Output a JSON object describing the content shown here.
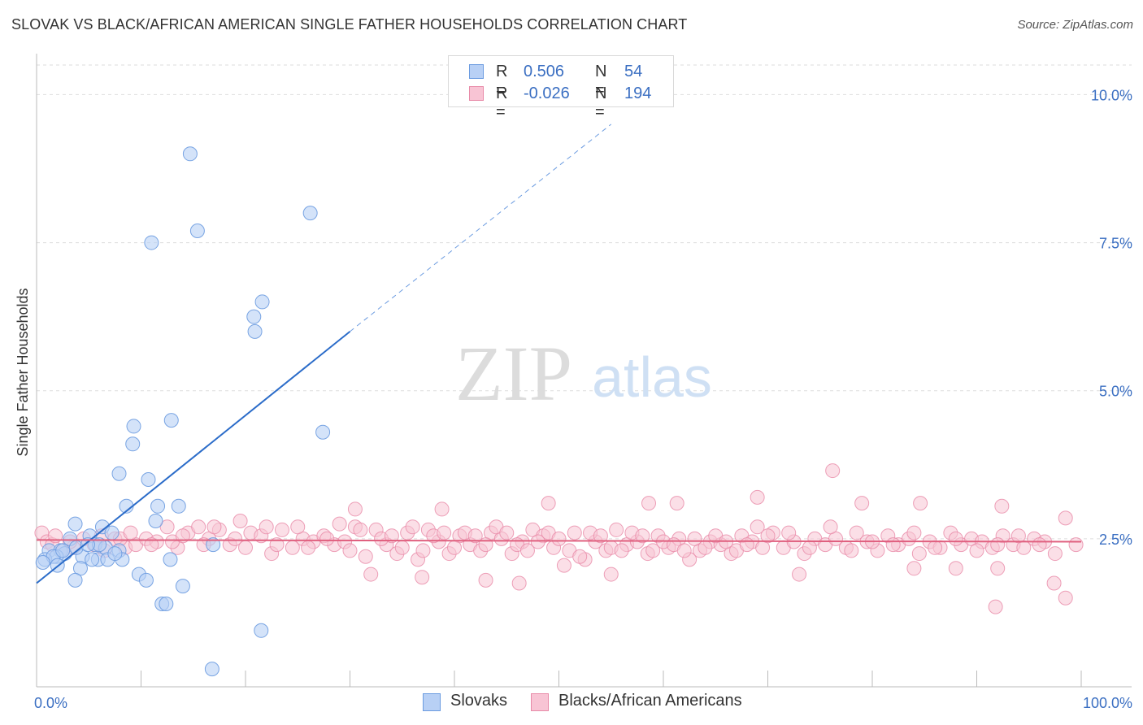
{
  "title": "SLOVAK VS BLACK/AFRICAN AMERICAN SINGLE FATHER HOUSEHOLDS CORRELATION CHART",
  "source": "Source: ZipAtlas.com",
  "watermark": {
    "zip": "ZIP",
    "atlas": "atlas"
  },
  "colors": {
    "blue_fill": "#b8d0f5",
    "blue_stroke": "#6b9be0",
    "blue_line": "#2b6cc9",
    "pink_fill": "#f8c4d4",
    "pink_stroke": "#e88aa8",
    "pink_line": "#e0607f",
    "axis_label": "#3b6fc2",
    "grid": "#dddddd"
  },
  "legend": {
    "rows": [
      {
        "r_label": "R =",
        "r_value": "0.506",
        "n_label": "N =",
        "n_value": "54",
        "series": "blue"
      },
      {
        "r_label": "R =",
        "r_value": "-0.026",
        "n_label": "N =",
        "n_value": "194",
        "series": "pink"
      }
    ]
  },
  "bottom_legend": [
    {
      "label": "Slovaks",
      "series": "blue"
    },
    {
      "label": "Blacks/African Americans",
      "series": "pink"
    }
  ],
  "chart_data": {
    "type": "scatter",
    "title": "SLOVAK VS BLACK/AFRICAN AMERICAN SINGLE FATHER HOUSEHOLDS CORRELATION CHART",
    "xlabel": "",
    "ylabel": "Single Father Households",
    "xlim": [
      0,
      100
    ],
    "ylim": [
      0,
      10.5
    ],
    "x_tick_labels": [
      {
        "value": 0,
        "label": "0.0%"
      },
      {
        "value": 100,
        "label": "100.0%"
      }
    ],
    "y_tick_labels": [
      {
        "value": 2.5,
        "label": "2.5%"
      },
      {
        "value": 5.0,
        "label": "5.0%"
      },
      {
        "value": 7.5,
        "label": "7.5%"
      },
      {
        "value": 10.0,
        "label": "10.0%"
      }
    ],
    "x_minor_ticks": [
      0,
      10,
      20,
      30,
      40,
      50,
      60,
      70,
      80,
      90,
      100
    ],
    "legend_position": "top-center",
    "series": [
      {
        "name": "Slovaks",
        "color": "blue",
        "R": 0.506,
        "N": 54,
        "trend": {
          "x0": 0,
          "y0": 1.75,
          "x1": 30,
          "y1": 6.0,
          "dashed_to_x": 55,
          "dashed_to_y": 9.5
        },
        "points": [
          [
            14.7,
            9.0
          ],
          [
            15.4,
            7.7
          ],
          [
            11,
            7.5
          ],
          [
            26.2,
            8.0
          ],
          [
            21.6,
            6.5
          ],
          [
            20.8,
            6.25
          ],
          [
            20.9,
            6.0
          ],
          [
            27.4,
            4.3
          ],
          [
            12.9,
            4.5
          ],
          [
            9.3,
            4.4
          ],
          [
            9.2,
            4.1
          ],
          [
            7.9,
            3.6
          ],
          [
            10.7,
            3.5
          ],
          [
            8.6,
            3.05
          ],
          [
            11.6,
            3.05
          ],
          [
            13.6,
            3.05
          ],
          [
            11.4,
            2.8
          ],
          [
            3.7,
            2.75
          ],
          [
            6.3,
            2.7
          ],
          [
            7.2,
            2.6
          ],
          [
            5.1,
            2.55
          ],
          [
            3.2,
            2.5
          ],
          [
            16.9,
            2.4
          ],
          [
            1.2,
            2.3
          ],
          [
            2.3,
            2.3
          ],
          [
            2.7,
            2.25
          ],
          [
            1.9,
            2.2
          ],
          [
            4.4,
            2.2
          ],
          [
            3.8,
            2.35
          ],
          [
            5.6,
            2.4
          ],
          [
            6.6,
            2.35
          ],
          [
            7.9,
            2.3
          ],
          [
            0.8,
            2.15
          ],
          [
            1.6,
            2.2
          ],
          [
            5.9,
            2.15
          ],
          [
            6.8,
            2.15
          ],
          [
            8.2,
            2.15
          ],
          [
            12.8,
            2.15
          ],
          [
            0.6,
            2.1
          ],
          [
            2.0,
            2.05
          ],
          [
            4.2,
            2.0
          ],
          [
            5.3,
            2.15
          ],
          [
            3.7,
            1.8
          ],
          [
            9.8,
            1.9
          ],
          [
            10.5,
            1.8
          ],
          [
            14.0,
            1.7
          ],
          [
            12.0,
            1.4
          ],
          [
            12.4,
            1.4
          ],
          [
            21.5,
            0.95
          ],
          [
            16.8,
            0.3
          ],
          [
            2.5,
            2.3
          ],
          [
            6.0,
            2.4
          ],
          [
            7.5,
            2.25
          ],
          [
            4.9,
            2.4
          ]
        ]
      },
      {
        "name": "Blacks/African Americans",
        "color": "pink",
        "R": -0.026,
        "N": 194,
        "trend": {
          "x0": 0,
          "y0": 2.48,
          "x1": 100,
          "y1": 2.45
        },
        "points": [
          [
            0.5,
            2.6
          ],
          [
            1.0,
            2.45
          ],
          [
            1.5,
            2.4
          ],
          [
            2.5,
            2.3
          ],
          [
            3.5,
            2.35
          ],
          [
            4.5,
            2.5
          ],
          [
            5.5,
            2.4
          ],
          [
            6.5,
            2.3
          ],
          [
            7.5,
            2.5
          ],
          [
            8.5,
            2.35
          ],
          [
            9.5,
            2.4
          ],
          [
            10.5,
            2.5
          ],
          [
            11.5,
            2.45
          ],
          [
            12.5,
            2.7
          ],
          [
            13.5,
            2.35
          ],
          [
            14.5,
            2.6
          ],
          [
            15.5,
            2.7
          ],
          [
            16.5,
            2.5
          ],
          [
            17.5,
            2.65
          ],
          [
            18.5,
            2.4
          ],
          [
            19.5,
            2.8
          ],
          [
            20.5,
            2.6
          ],
          [
            21.5,
            2.55
          ],
          [
            22.5,
            2.25
          ],
          [
            23.5,
            2.65
          ],
          [
            24.5,
            2.35
          ],
          [
            25.5,
            2.5
          ],
          [
            26.5,
            2.45
          ],
          [
            27.5,
            2.55
          ],
          [
            28.5,
            2.4
          ],
          [
            29.5,
            2.45
          ],
          [
            30.5,
            2.7
          ],
          [
            31.5,
            2.2
          ],
          [
            32.5,
            2.65
          ],
          [
            33.5,
            2.4
          ],
          [
            34.5,
            2.25
          ],
          [
            35.5,
            2.6
          ],
          [
            36.5,
            2.15
          ],
          [
            37.5,
            2.65
          ],
          [
            38.5,
            2.45
          ],
          [
            39.5,
            2.25
          ],
          [
            40.5,
            2.55
          ],
          [
            41.5,
            2.4
          ],
          [
            42.5,
            2.3
          ],
          [
            43.5,
            2.6
          ],
          [
            44.5,
            2.5
          ],
          [
            45.5,
            2.25
          ],
          [
            46.5,
            2.45
          ],
          [
            47.5,
            2.65
          ],
          [
            48.5,
            2.55
          ],
          [
            49.5,
            2.35
          ],
          [
            50.5,
            2.05
          ],
          [
            51.5,
            2.6
          ],
          [
            52.5,
            2.15
          ],
          [
            53.5,
            2.45
          ],
          [
            54.5,
            2.3
          ],
          [
            55.5,
            2.65
          ],
          [
            56.5,
            2.4
          ],
          [
            57.5,
            2.45
          ],
          [
            58.5,
            2.25
          ],
          [
            59.5,
            2.55
          ],
          [
            60.5,
            2.35
          ],
          [
            61.5,
            2.5
          ],
          [
            62.5,
            2.15
          ],
          [
            63.5,
            2.3
          ],
          [
            64.5,
            2.45
          ],
          [
            65.5,
            2.4
          ],
          [
            66.5,
            2.25
          ],
          [
            67.5,
            2.55
          ],
          [
            68.5,
            2.45
          ],
          [
            69.5,
            2.35
          ],
          [
            70.5,
            2.6
          ],
          [
            71.5,
            2.35
          ],
          [
            72.5,
            2.45
          ],
          [
            73.5,
            2.25
          ],
          [
            74.5,
            2.5
          ],
          [
            75.5,
            2.4
          ],
          [
            76.5,
            2.5
          ],
          [
            77.5,
            2.35
          ],
          [
            78.5,
            2.6
          ],
          [
            79.5,
            2.45
          ],
          [
            80.5,
            2.3
          ],
          [
            81.5,
            2.55
          ],
          [
            82.5,
            2.4
          ],
          [
            83.5,
            2.5
          ],
          [
            84.5,
            2.25
          ],
          [
            85.5,
            2.45
          ],
          [
            86.5,
            2.35
          ],
          [
            87.5,
            2.6
          ],
          [
            88.5,
            2.4
          ],
          [
            89.5,
            2.5
          ],
          [
            90.5,
            2.45
          ],
          [
            91.5,
            2.35
          ],
          [
            92.5,
            2.55
          ],
          [
            93.5,
            2.4
          ],
          [
            94.5,
            2.35
          ],
          [
            95.5,
            2.5
          ],
          [
            96.5,
            2.45
          ],
          [
            97.5,
            2.25
          ],
          [
            98.5,
            2.85
          ],
          [
            99.5,
            2.4
          ],
          [
            1.8,
            2.55
          ],
          [
            3.2,
            2.45
          ],
          [
            6.2,
            2.55
          ],
          [
            8.0,
            2.5
          ],
          [
            9.0,
            2.6
          ],
          [
            11.0,
            2.4
          ],
          [
            13.0,
            2.45
          ],
          [
            14.0,
            2.55
          ],
          [
            16.0,
            2.4
          ],
          [
            17.0,
            2.7
          ],
          [
            19.0,
            2.5
          ],
          [
            20.0,
            2.35
          ],
          [
            22.0,
            2.7
          ],
          [
            23.0,
            2.4
          ],
          [
            25.0,
            2.7
          ],
          [
            26.0,
            2.35
          ],
          [
            27.8,
            2.5
          ],
          [
            29.0,
            2.75
          ],
          [
            30.0,
            2.3
          ],
          [
            31.0,
            2.65
          ],
          [
            33.0,
            2.5
          ],
          [
            34.0,
            2.55
          ],
          [
            35.0,
            2.35
          ],
          [
            36.0,
            2.7
          ],
          [
            37.0,
            2.3
          ],
          [
            38.0,
            2.55
          ],
          [
            39.0,
            2.6
          ],
          [
            40.0,
            2.35
          ],
          [
            41.0,
            2.6
          ],
          [
            42.0,
            2.55
          ],
          [
            43.0,
            2.4
          ],
          [
            44.0,
            2.7
          ],
          [
            45.0,
            2.6
          ],
          [
            46.0,
            2.4
          ],
          [
            47.0,
            2.3
          ],
          [
            48.0,
            2.45
          ],
          [
            49.0,
            2.6
          ],
          [
            50.0,
            2.5
          ],
          [
            51.0,
            2.3
          ],
          [
            52.0,
            2.2
          ],
          [
            53.0,
            2.6
          ],
          [
            54.0,
            2.55
          ],
          [
            55.0,
            2.35
          ],
          [
            56.0,
            2.3
          ],
          [
            57.0,
            2.6
          ],
          [
            58.0,
            2.55
          ],
          [
            59.0,
            2.3
          ],
          [
            60.0,
            2.45
          ],
          [
            61.0,
            2.4
          ],
          [
            62.0,
            2.3
          ],
          [
            63.0,
            2.5
          ],
          [
            64.0,
            2.35
          ],
          [
            65.0,
            2.55
          ],
          [
            66.0,
            2.45
          ],
          [
            67.0,
            2.3
          ],
          [
            68.0,
            2.4
          ],
          [
            69.0,
            2.7
          ],
          [
            70.0,
            2.55
          ],
          [
            72.0,
            2.6
          ],
          [
            74.0,
            2.35
          ],
          [
            76.0,
            2.7
          ],
          [
            78.0,
            2.3
          ],
          [
            80.0,
            2.45
          ],
          [
            82.0,
            2.4
          ],
          [
            84.0,
            2.6
          ],
          [
            86.0,
            2.35
          ],
          [
            88.0,
            2.5
          ],
          [
            90.0,
            2.3
          ],
          [
            92.0,
            2.4
          ],
          [
            94.0,
            2.55
          ],
          [
            96.0,
            2.4
          ],
          [
            30.5,
            3.0
          ],
          [
            38.8,
            3.0
          ],
          [
            49.0,
            3.1
          ],
          [
            58.6,
            3.1
          ],
          [
            61.3,
            3.1
          ],
          [
            69.0,
            3.2
          ],
          [
            76.2,
            3.65
          ],
          [
            79.0,
            3.1
          ],
          [
            84.6,
            3.1
          ],
          [
            92.4,
            3.05
          ],
          [
            43.0,
            1.8
          ],
          [
            32.0,
            1.9
          ],
          [
            55.0,
            1.9
          ],
          [
            73.0,
            1.9
          ],
          [
            84.0,
            2.0
          ],
          [
            88.0,
            2.0
          ],
          [
            92.0,
            2.0
          ],
          [
            36.9,
            1.85
          ],
          [
            46.2,
            1.75
          ],
          [
            97.4,
            1.75
          ],
          [
            91.8,
            1.35
          ],
          [
            98.5,
            1.5
          ]
        ]
      }
    ]
  }
}
